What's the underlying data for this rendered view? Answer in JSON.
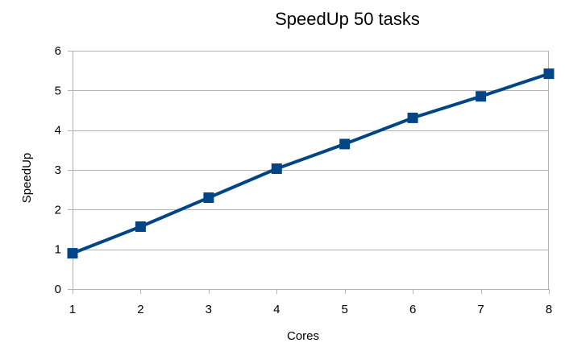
{
  "chart_data": {
    "type": "line",
    "title": "SpeedUp 50 tasks",
    "xlabel": "Cores",
    "ylabel": "SpeedUp",
    "x": [
      1,
      2,
      3,
      4,
      5,
      6,
      7,
      8
    ],
    "series": [
      {
        "values": [
          0.9,
          1.57,
          2.3,
          3.03,
          3.65,
          4.31,
          4.85,
          5.42
        ],
        "color": "#004586",
        "marker": "square"
      }
    ],
    "xlim": [
      1,
      8
    ],
    "ylim": [
      0,
      6
    ],
    "x_ticks": [
      "1",
      "2",
      "3",
      "4",
      "5",
      "6",
      "7",
      "8"
    ],
    "y_ticks": [
      "0",
      "1",
      "2",
      "3",
      "4",
      "5",
      "6"
    ],
    "grid": "horizontal",
    "legend": "none"
  }
}
